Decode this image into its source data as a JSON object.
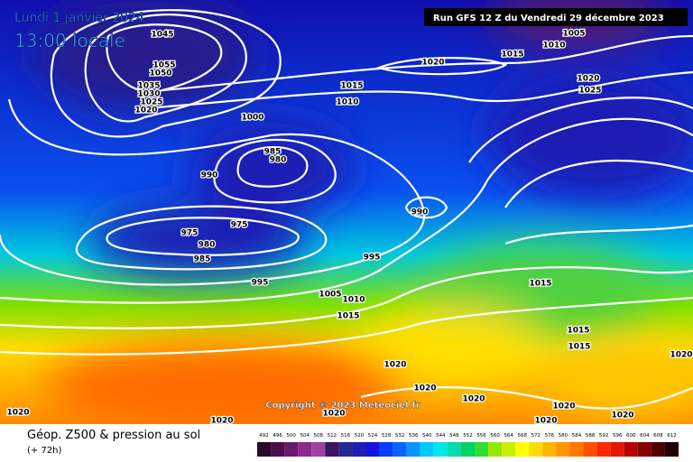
{
  "header": {
    "date": "Lundi 1 janvier 2024",
    "time": "13:00 locale",
    "run": "Run GFS 12 Z du Vendredi 29 décembre 2023",
    "copyright": "Copyright © 2023 Meteociel.fr"
  },
  "legend": {
    "title": "Géop. Z500 & pression au sol",
    "lead": "(+ 72h)",
    "ticks": [
      492,
      496,
      500,
      504,
      508,
      512,
      516,
      520,
      524,
      528,
      532,
      536,
      540,
      544,
      548,
      552,
      556,
      560,
      564,
      568,
      572,
      576,
      580,
      584,
      588,
      592,
      596,
      600,
      604,
      608,
      612
    ],
    "colors": [
      "#2a0a2a",
      "#4b0f4b",
      "#6a1a6a",
      "#8a2a8a",
      "#a040a0",
      "#3c1464",
      "#28288c",
      "#1e1eb4",
      "#1414dc",
      "#0a3cff",
      "#0a64ff",
      "#0a96ff",
      "#00c8ff",
      "#00e6e6",
      "#00dcaa",
      "#00d264",
      "#32dc32",
      "#96e600",
      "#c8f000",
      "#ffff00",
      "#ffdc00",
      "#ffb400",
      "#ff9600",
      "#ff7800",
      "#ff5000",
      "#ff2800",
      "#e61400",
      "#b40000",
      "#820000",
      "#500000",
      "#1e0000"
    ]
  },
  "isobar_labels": [
    1045,
    1055,
    1050,
    1035,
    1030,
    1025,
    1020,
    1000,
    1015,
    1010,
    1020,
    1015,
    1010,
    1005,
    1020,
    1025,
    985,
    980,
    990,
    990,
    975,
    975,
    980,
    985,
    995,
    995,
    1005,
    1010,
    1015,
    1015,
    1015,
    1015,
    1020,
    1020,
    1020,
    1020,
    1020,
    1020,
    1020,
    1020,
    1020,
    1020
  ]
}
